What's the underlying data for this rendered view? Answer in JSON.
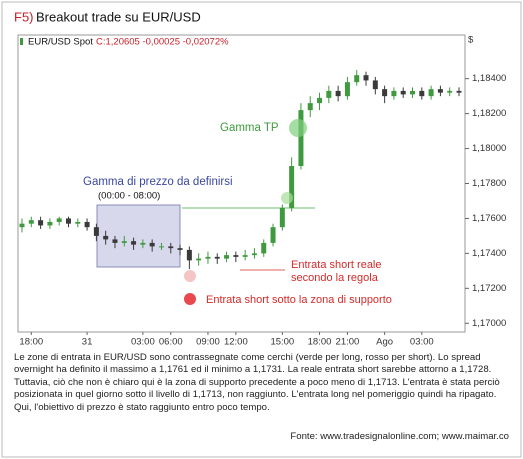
{
  "figure_label": "F5)",
  "title": "Breakout trade su EUR/USD",
  "chart_data": {
    "type": "candlestick",
    "instrument": "EUR/USD Spot",
    "quote": "C:1,20605 -0,00025 -0,02072%",
    "currency": "$",
    "categories": [
      null,
      "18:00",
      null,
      null,
      null,
      null,
      null,
      "31",
      null,
      null,
      null,
      null,
      null,
      "03:00",
      null,
      null,
      "06:00",
      null,
      null,
      null,
      "09:00",
      null,
      null,
      "12:00",
      null,
      null,
      null,
      null,
      "15:00",
      null,
      null,
      null,
      "18:00",
      null,
      null,
      "21:00",
      null,
      null,
      null,
      "Ago",
      null,
      null,
      null,
      "03:00",
      null,
      null,
      null,
      null
    ],
    "open": [
      1.1755,
      1.1757,
      1.1759,
      1.1756,
      1.1758,
      1.176,
      1.1757,
      1.1758,
      1.1755,
      1.175,
      1.1748,
      1.1746,
      1.1747,
      1.1745,
      1.1746,
      1.1744,
      1.1744,
      1.1743,
      1.1742,
      1.1736,
      1.1737,
      1.1738,
      1.1737,
      1.1739,
      1.1738,
      1.1739,
      1.174,
      1.1746,
      1.1755,
      1.1766,
      1.179,
      1.1822,
      1.1826,
      1.1829,
      1.1833,
      1.183,
      1.1838,
      1.1842,
      1.1839,
      1.1834,
      1.183,
      1.1833,
      1.1831,
      1.1833,
      1.183,
      1.1834,
      1.1832,
      1.1833
    ],
    "high": [
      1.176,
      1.1761,
      1.1761,
      1.176,
      1.1761,
      1.1761,
      1.176,
      1.176,
      1.1757,
      1.1753,
      1.175,
      1.175,
      1.1749,
      1.1748,
      1.1748,
      1.1746,
      1.1746,
      1.1745,
      1.1744,
      1.174,
      1.1741,
      1.174,
      1.1741,
      1.1741,
      1.1742,
      1.1743,
      1.1748,
      1.1757,
      1.1768,
      1.1795,
      1.1826,
      1.183,
      1.1832,
      1.1836,
      1.1836,
      1.1841,
      1.1845,
      1.1844,
      1.1841,
      1.1836,
      1.1835,
      1.1835,
      1.1835,
      1.1835,
      1.1836,
      1.1836,
      1.1835,
      1.1835
    ],
    "low": [
      1.1752,
      1.1755,
      1.1754,
      1.1754,
      1.1756,
      1.1755,
      1.1755,
      1.1753,
      1.1747,
      1.1745,
      1.1743,
      1.1744,
      1.1742,
      1.1743,
      1.1741,
      1.1742,
      1.174,
      1.1739,
      1.1731,
      1.1733,
      1.1734,
      1.1734,
      1.1735,
      1.1735,
      1.1736,
      1.1737,
      1.1738,
      1.1744,
      1.1753,
      1.1764,
      1.1788,
      1.1818,
      1.1822,
      1.1826,
      1.1827,
      1.1828,
      1.1836,
      1.1836,
      1.1831,
      1.1826,
      1.1828,
      1.1829,
      1.1829,
      1.1828,
      1.1828,
      1.183,
      1.183,
      1.183
    ],
    "close": [
      1.1757,
      1.1759,
      1.1756,
      1.1758,
      1.176,
      1.1757,
      1.1758,
      1.1755,
      1.175,
      1.1748,
      1.1746,
      1.1747,
      1.1745,
      1.1746,
      1.1744,
      1.1744,
      1.1743,
      1.1742,
      1.1736,
      1.1737,
      1.1738,
      1.1737,
      1.1739,
      1.1738,
      1.1739,
      1.174,
      1.1746,
      1.1755,
      1.1766,
      1.179,
      1.1822,
      1.1826,
      1.1829,
      1.1833,
      1.183,
      1.1838,
      1.1842,
      1.1839,
      1.1834,
      1.183,
      1.1833,
      1.1831,
      1.1833,
      1.183,
      1.1834,
      1.1832,
      1.1833,
      1.1832
    ],
    "up_color": "#3f9a3f",
    "down_color": "#3a3a3a",
    "ylim": [
      1.1695,
      1.1865
    ],
    "yticks": [
      {
        "value": 1.17,
        "label": "1,17000"
      },
      {
        "value": 1.172,
        "label": "1,17200"
      },
      {
        "value": 1.174,
        "label": "1,17400"
      },
      {
        "value": 1.176,
        "label": "1,17600"
      },
      {
        "value": 1.178,
        "label": "1,17800"
      },
      {
        "value": 1.18,
        "label": "1,18000"
      },
      {
        "value": 1.182,
        "label": "1,18200"
      },
      {
        "value": 1.184,
        "label": "1,18400"
      }
    ],
    "annotations": {
      "range_label": "Gamma di prezzo da definirsi",
      "range_time": "(00:00 - 08:00)",
      "tp_label": "Gamma TP",
      "short_real_1": "Entrata short reale",
      "short_real_2": "secondo la regola",
      "short_support": "Entrata short sotto la zona di supporto"
    }
  },
  "caption": "Le zone di entrata in EUR/USD sono contrassegnate come cerchi (verde per long, rosso per short). Lo spread overnight ha definito il massimo a 1,1761 ed il minimo a 1,1731. La reale entrata short sarebbe attorno a 1,1728. Tuttavia, ciò che non è chiaro qui è la zona di supporto precedente a poco meno di 1,1713. L'entrata è stata perciò posizionata in quel giorno sotto il livello di 1,1713, non raggiunto. L'entrata long nel pomeriggio quindi ha ripagato. Qui, l'obiettivo di prezzo è stato raggiunto entro poco tempo.",
  "source": "Fonte: www.tradesignalonline.com; www.maimar.co"
}
